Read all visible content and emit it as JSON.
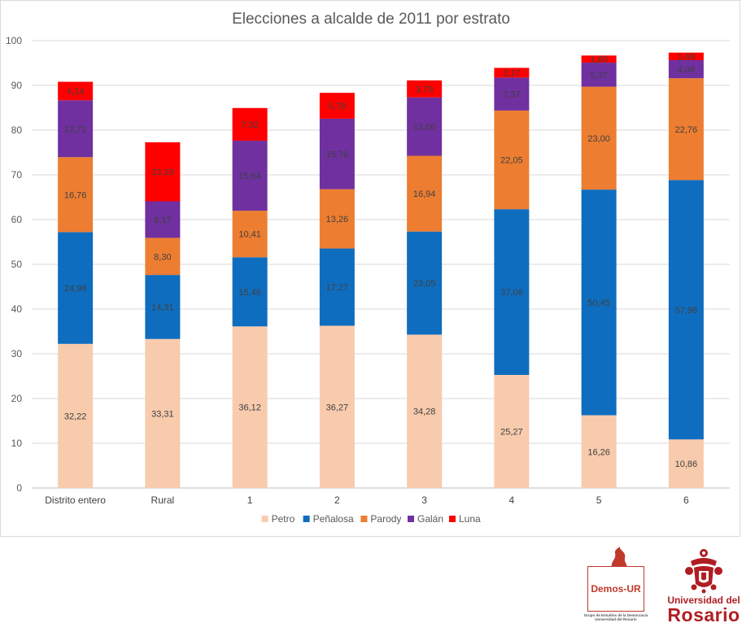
{
  "chart_data": {
    "type": "stacked-bar",
    "title": "Elecciones a alcalde de 2011 por estrato",
    "categories": [
      "Distrito entero",
      "Rural",
      "1",
      "2",
      "3",
      "4",
      "5",
      "6"
    ],
    "ylim": [
      0,
      100
    ],
    "yticks": [
      "0",
      "10",
      "20",
      "30",
      "40",
      "50",
      "60",
      "70",
      "80",
      "90",
      "100"
    ],
    "grid": true,
    "legend_position": "bottom",
    "series": [
      {
        "name": "Petro",
        "color": "#f8cbad",
        "values": [
          32.22,
          33.31,
          36.12,
          36.27,
          34.28,
          25.27,
          16.26,
          10.86
        ],
        "labels": [
          "32,22",
          "33,31",
          "36,12",
          "36,27",
          "34,28",
          "25,27",
          "16,26",
          "10,86"
        ]
      },
      {
        "name": "Peñalosa",
        "color": "#0f6dbf",
        "values": [
          24.98,
          14.31,
          15.46,
          17.27,
          23.05,
          37.06,
          50.45,
          57.98
        ],
        "labels": [
          "24,98",
          "14,31",
          "15,46",
          "17,27",
          "23,05",
          "37,06",
          "50,45",
          "57,98"
        ]
      },
      {
        "name": "Parody",
        "color": "#ed7d31",
        "values": [
          16.76,
          8.3,
          10.41,
          13.26,
          16.94,
          22.05,
          23.0,
          22.76
        ],
        "labels": [
          "16,76",
          "8,30",
          "10,41",
          "13,26",
          "16,94",
          "22,05",
          "23,00",
          "22,76"
        ]
      },
      {
        "name": "Galán",
        "color": "#7030a0",
        "values": [
          12.71,
          8.17,
          15.64,
          15.76,
          13.06,
          7.37,
          5.37,
          4.04
        ],
        "labels": [
          "12,71",
          "8,17",
          "15,64",
          "15,76",
          "13,06",
          "7,37",
          "5,37",
          "4,04"
        ]
      },
      {
        "name": "Luna",
        "color": "#ff0000",
        "values": [
          4.14,
          13.19,
          7.32,
          5.78,
          3.79,
          2.17,
          1.6,
          1.69
        ],
        "labels": [
          "4,14",
          "13,19",
          "7,32",
          "5,78",
          "3,79",
          "2,17",
          "1,60",
          "1,69"
        ]
      }
    ]
  },
  "logos": {
    "demos": {
      "name": "Demos-UR",
      "subtitle_1": "Grupo de Estudios de la Democracia",
      "subtitle_2": "Universidad del Rosario"
    },
    "universidad": {
      "line1": "Universidad del",
      "line2": "Rosario"
    }
  }
}
